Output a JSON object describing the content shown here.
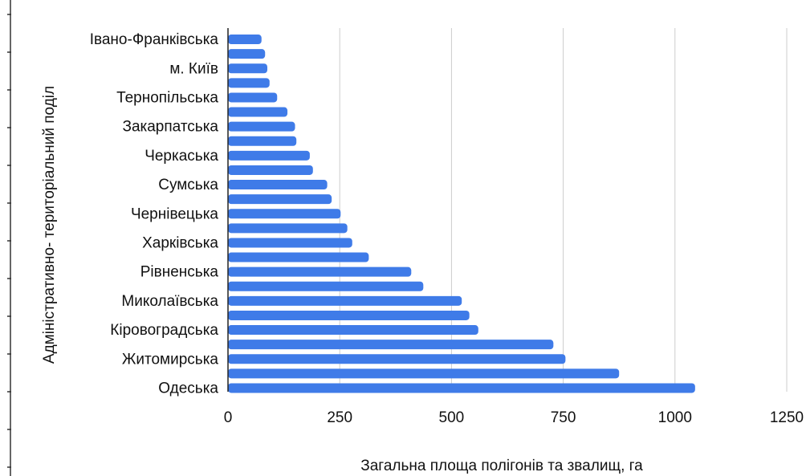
{
  "chart_data": {
    "type": "bar",
    "orientation": "horizontal",
    "title": "",
    "xlabel": "Загальна площа полігонів та звалищ, га",
    "ylabel": "Адміністративно- територіальний поділ",
    "xlim": [
      0,
      1250
    ],
    "x_ticks": [
      0,
      250,
      500,
      750,
      1000,
      1250
    ],
    "grid": true,
    "bar_color": "#3f7be8",
    "grid_color": "#cccccc",
    "categories": [
      "Івано-Франківська",
      "",
      "м. Київ",
      "",
      "Тернопільська",
      "",
      "Закарпатська",
      "",
      "Черкаська",
      "",
      "Сумська",
      "",
      "Чернівецька",
      "",
      "Харківська",
      "",
      "Рівненська",
      "",
      "Миколаївська",
      "",
      "Кіровоградська",
      "",
      "Житомирська",
      "",
      "Одеська"
    ],
    "values": [
      75,
      83,
      88,
      93,
      110,
      133,
      150,
      153,
      183,
      190,
      222,
      232,
      252,
      267,
      278,
      315,
      410,
      437,
      523,
      540,
      560,
      728,
      755,
      875,
      1045
    ]
  }
}
